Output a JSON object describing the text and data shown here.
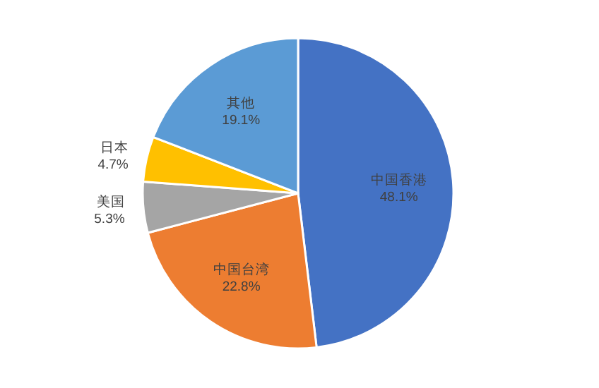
{
  "chart_data": {
    "type": "pie",
    "categories": [
      "中国香港",
      "中国台湾",
      "美国",
      "日本",
      "其他"
    ],
    "values": [
      48.1,
      22.8,
      5.3,
      4.7,
      19.1
    ],
    "value_labels": [
      "48.1%",
      "22.8%",
      "5.3%",
      "4.7%",
      "19.1%"
    ],
    "colors": [
      "#4472c4",
      "#ed7d31",
      "#a5a5a5",
      "#ffc000",
      "#5b9bd5"
    ]
  }
}
